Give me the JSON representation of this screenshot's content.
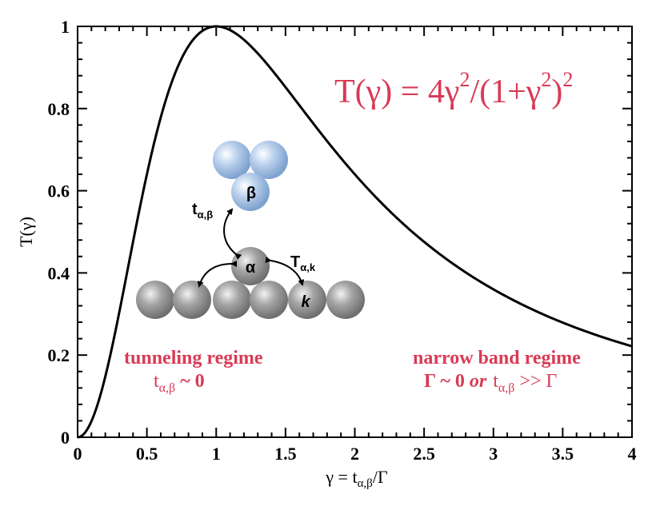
{
  "chart_data": {
    "type": "line",
    "xlabel": "γ = tα,β/Γ",
    "ylabel": "T(γ)",
    "xlim": [
      0,
      4
    ],
    "ylim": [
      0,
      1
    ],
    "xticks": [
      "0",
      "0.5",
      "1",
      "1.5",
      "2",
      "2.5",
      "3",
      "3.5",
      "4"
    ],
    "yticks": [
      "0",
      "0.2",
      "0.4",
      "0.6",
      "0.8",
      "1"
    ],
    "grid": false,
    "series": [
      {
        "formula": "T(γ) = 4γ²/(1+γ²)²",
        "color": "#000000",
        "x": [
          0,
          0.25,
          0.5,
          0.75,
          1,
          1.25,
          1.5,
          1.75,
          2,
          2.5,
          3,
          3.5,
          4
        ],
        "y": [
          0,
          0.2215,
          0.64,
          0.9216,
          1.0,
          0.9518,
          0.8521,
          0.7479,
          0.64,
          0.4756,
          0.36,
          0.2801,
          0.2215
        ]
      }
    ],
    "annotations": {
      "formula_main": "T(γ) = 4γ",
      "formula_mid": "/(1+γ",
      "formula_end": ")",
      "formula_sup": "2",
      "left_regime_title": "tunneling regime",
      "left_regime_t": "t",
      "left_regime_sub": "α,β",
      "left_regime_rest": " ~ 0",
      "right_regime_title": "narrow band regime",
      "right_regime_pre": "Γ ~ 0 ",
      "right_regime_or": "or",
      "right_regime_t": "t",
      "right_regime_sub": "α,β",
      "right_regime_rest": " >> Γ"
    },
    "inset": {
      "beta_label": "β",
      "alpha_label": "α",
      "k_label": "k",
      "t_ab_main": "t",
      "t_ab_sub": "α,β",
      "T_ak_main": "T",
      "T_ak_sub": "α,k"
    },
    "xlabel_parts": {
      "pre": "γ = t",
      "sub": "α,β",
      "post": "/Γ"
    },
    "colors": {
      "accent": "#d93a55",
      "curve": "#000000",
      "blue_atom": "#a9c4e6",
      "gray_atom": "#9a9a9a"
    }
  }
}
